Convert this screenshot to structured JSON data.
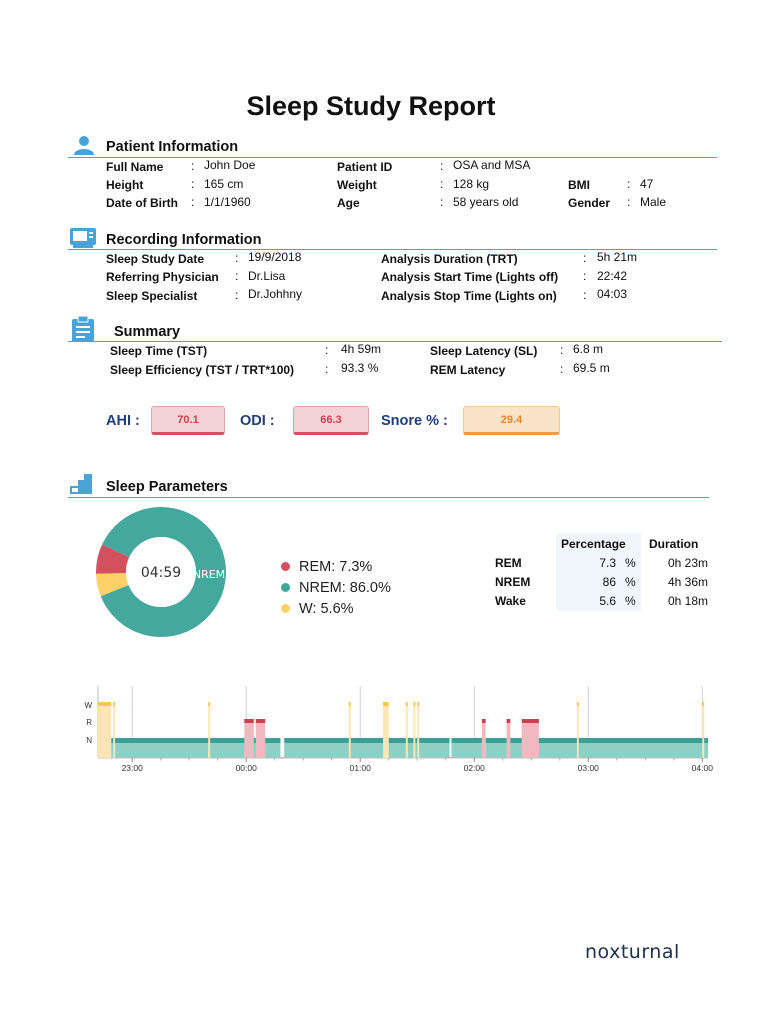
{
  "title": "Sleep Study Report",
  "patient": {
    "heading": "Patient Information",
    "full_name_label": "Full Name",
    "full_name": "John Doe",
    "height_label": "Height",
    "height": "165 cm",
    "dob_label": "Date of Birth",
    "dob": "1/1/1960",
    "patient_id_label": "Patient ID",
    "patient_id": "OSA and MSA",
    "weight_label": "Weight",
    "weight": "128 kg",
    "age_label": "Age",
    "age": "58 years old",
    "bmi_label": "BMI",
    "bmi": "47",
    "gender_label": "Gender",
    "gender": "Male"
  },
  "recording": {
    "heading": "Recording Information",
    "study_date_label": "Sleep Study Date",
    "study_date": "19/9/2018",
    "physician_label": "Referring Physician",
    "physician": "Dr.Lisa",
    "specialist_label": "Sleep Specialist",
    "specialist": "Dr.Johhny",
    "duration_label": "Analysis Duration (TRT)",
    "duration": "5h 21m",
    "start_label": "Analysis Start Time (Lights off)",
    "start": "22:42",
    "stop_label": "Analysis Stop Time (Lights on)",
    "stop": "04:03"
  },
  "summary": {
    "heading": "Summary",
    "tst_label": "Sleep Time (TST)",
    "tst": "4h 59m",
    "efficiency_label": "Sleep Efficiency (TST / TRT*100)",
    "efficiency": "93.3 %",
    "latency_label": "Sleep Latency (SL)",
    "latency": "6.8 m",
    "rem_latency_label": "REM Latency",
    "rem_latency": "69.5 m"
  },
  "metrics": {
    "ahi_label": "AHI",
    "ahi": "70.1",
    "odi_label": "ODI",
    "odi": "66.3",
    "snore_label": "Snore %",
    "snore": "29.4",
    "colors": {
      "red": "#d3505f",
      "orange": "#ef9a45"
    }
  },
  "parameters": {
    "heading": "Sleep Parameters",
    "donut_center": "04:59",
    "donut_label": "NREM",
    "legend": [
      {
        "text": "REM: 7.3%",
        "color": "#d3505f"
      },
      {
        "text": "NREM: 86.0%",
        "color": "#3fa89d"
      },
      {
        "text": "W: 5.6%",
        "color": "#ffd166"
      }
    ],
    "table": {
      "headers": [
        "Percentage",
        "Duration"
      ],
      "rows": [
        {
          "name": "REM",
          "pct": "7.3",
          "unit": "%",
          "dur": "0h 23m"
        },
        {
          "name": "NREM",
          "pct": "86",
          "unit": "%",
          "dur": "4h 36m"
        },
        {
          "name": "Wake",
          "pct": "5.6",
          "unit": "%",
          "dur": "0h 18m"
        }
      ]
    }
  },
  "chart_data": [
    {
      "type": "pie",
      "labels": [
        "REM",
        "NREM",
        "W"
      ],
      "values": [
        7.3,
        86.0,
        5.6
      ],
      "colors": [
        "#d3505f",
        "#45a89c",
        "#ffd166"
      ]
    },
    {
      "type": "hypnogram",
      "y_labels": [
        "W",
        "R",
        "N"
      ],
      "x_ticks": [
        "23:00",
        "00:00",
        "01:00",
        "02:00",
        "03:00",
        "04:00"
      ],
      "x_range": [
        "22:42",
        "04:03"
      ],
      "wake_periods": [
        [
          "22:42",
          "22:49"
        ],
        [
          "22:50",
          "22:51"
        ],
        [
          "23:40",
          "23:41"
        ],
        [
          "00:54",
          "00:55"
        ],
        [
          "01:12",
          "01:15"
        ],
        [
          "01:24",
          "01:25"
        ],
        [
          "01:28",
          "01:29"
        ],
        [
          "01:30",
          "01:31"
        ],
        [
          "02:54",
          "02:55"
        ],
        [
          "04:00",
          "04:01"
        ]
      ],
      "rem_periods": [
        [
          "23:59",
          "00:04"
        ],
        [
          "00:05",
          "00:10"
        ],
        [
          "02:04",
          "02:06"
        ],
        [
          "02:17",
          "02:19"
        ],
        [
          "02:25",
          "02:34"
        ]
      ],
      "gaps": [
        [
          "00:18",
          "00:20"
        ],
        [
          "01:47",
          "01:48"
        ],
        [
          "02:05",
          "02:06"
        ]
      ]
    }
  ],
  "brand": "noxturnal"
}
